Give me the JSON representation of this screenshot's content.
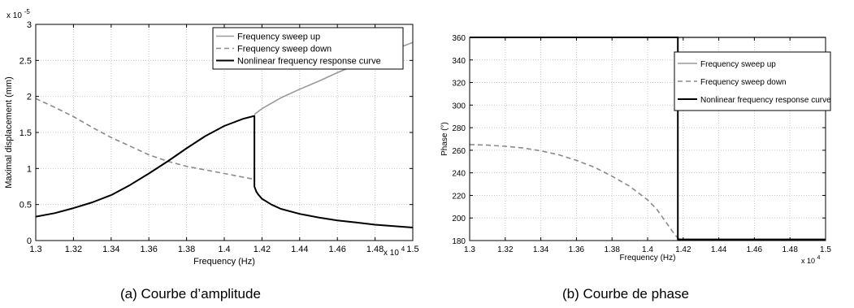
{
  "captions": {
    "a": "(a)  Courbe d’amplitude",
    "b": "(b)  Courbe de phase"
  },
  "colors": {
    "sweep_up": "#9a9a9a",
    "sweep_down": "#8a8a8a",
    "nonlinear": "#000000",
    "grid": "#c8c8c8"
  },
  "chart_data": [
    {
      "type": "line",
      "panel": "a",
      "xlabel": "Frequency (Hz)",
      "ylabel": "Maximal displacement (mm)",
      "x_exponent_label": "x 10",
      "x_exponent": "4",
      "y_exponent_label": "x 10",
      "y_exponent": "-5",
      "xlim": [
        1.3,
        1.5
      ],
      "ylim": [
        0,
        3
      ],
      "xticks": [
        "1.3",
        "1.32",
        "1.34",
        "1.36",
        "1.38",
        "1.4",
        "1.42",
        "1.44",
        "1.46",
        "1.48",
        "1.5"
      ],
      "yticks": [
        "0",
        "0.5",
        "1",
        "1.5",
        "2",
        "2.5",
        "3"
      ],
      "grid": true,
      "legend_position": "top-right",
      "series": [
        {
          "name": "Frequency sweep up",
          "style": "solid",
          "color": "#9a9a9a",
          "x": [
            1.416,
            1.42,
            1.43,
            1.44,
            1.45,
            1.46,
            1.47,
            1.48,
            1.49,
            1.5
          ],
          "y": [
            1.75,
            1.83,
            1.98,
            2.1,
            2.21,
            2.33,
            2.44,
            2.55,
            2.65,
            2.75
          ]
        },
        {
          "name": "Frequency sweep down",
          "style": "dashed",
          "color": "#8a8a8a",
          "x": [
            1.3,
            1.31,
            1.32,
            1.33,
            1.34,
            1.35,
            1.36,
            1.37,
            1.38,
            1.39,
            1.4,
            1.41,
            1.416
          ],
          "y": [
            1.97,
            1.85,
            1.72,
            1.57,
            1.43,
            1.31,
            1.19,
            1.1,
            1.03,
            0.98,
            0.93,
            0.88,
            0.85
          ]
        },
        {
          "name": "Nonlinear frequency response curve",
          "style": "solid",
          "color": "#000000",
          "x": [
            1.3,
            1.31,
            1.32,
            1.33,
            1.34,
            1.35,
            1.36,
            1.37,
            1.38,
            1.39,
            1.4,
            1.41,
            1.416,
            1.416,
            1.417,
            1.418,
            1.42,
            1.425,
            1.43,
            1.44,
            1.45,
            1.46,
            1.47,
            1.48,
            1.49,
            1.5
          ],
          "y": [
            0.33,
            0.38,
            0.45,
            0.53,
            0.63,
            0.77,
            0.93,
            1.1,
            1.28,
            1.45,
            1.59,
            1.69,
            1.73,
            0.75,
            0.68,
            0.64,
            0.58,
            0.5,
            0.44,
            0.37,
            0.32,
            0.28,
            0.25,
            0.22,
            0.2,
            0.18
          ]
        }
      ]
    },
    {
      "type": "line",
      "panel": "b",
      "xlabel": "Frequency (Hz)",
      "ylabel": "Phase (°)",
      "x_exponent_label": "x 10",
      "x_exponent": "4",
      "xlim": [
        1.3,
        1.5
      ],
      "ylim": [
        180,
        360
      ],
      "xticks": [
        "1.3",
        "1.32",
        "1.34",
        "1.36",
        "1.38",
        "1.4",
        "1.42",
        "1.44",
        "1.46",
        "1.48",
        "1.5"
      ],
      "yticks": [
        "180",
        "200",
        "220",
        "240",
        "260",
        "280",
        "300",
        "320",
        "340",
        "360"
      ],
      "grid": true,
      "legend_position": "top-right",
      "series": [
        {
          "name": "Frequency sweep up",
          "style": "solid",
          "color": "#9a9a9a",
          "x": [
            1.416,
            1.44,
            1.47,
            1.5
          ],
          "y": [
            360,
            360,
            360,
            360
          ]
        },
        {
          "name": "Frequency sweep down",
          "style": "dashed",
          "color": "#8a8a8a",
          "x": [
            1.3,
            1.31,
            1.32,
            1.33,
            1.34,
            1.35,
            1.36,
            1.37,
            1.38,
            1.39,
            1.4,
            1.405,
            1.41,
            1.414,
            1.416,
            1.418
          ],
          "y": [
            265,
            264.5,
            263.5,
            262,
            259.5,
            256,
            251,
            245,
            237,
            228,
            216,
            208,
            197,
            188,
            184,
            181
          ]
        },
        {
          "name": "Nonlinear frequency response curve",
          "style": "solid",
          "color": "#000000",
          "x": [
            1.3,
            1.417,
            1.417,
            1.5
          ],
          "y": [
            360,
            360,
            181,
            181
          ]
        }
      ]
    }
  ]
}
